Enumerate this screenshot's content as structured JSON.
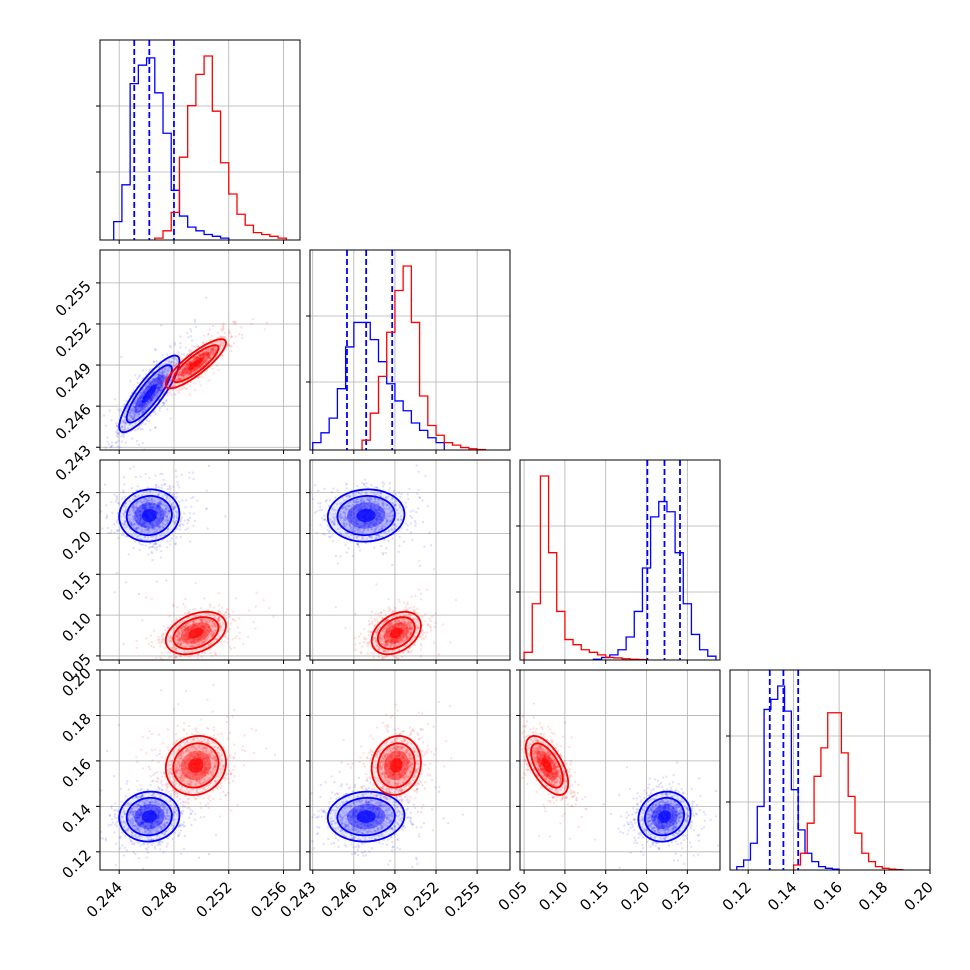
{
  "chart_data": {
    "type": "corner",
    "title": "",
    "n_parameters": 4,
    "series": [
      {
        "color": "#0000ff",
        "marginals": [
          {
            "bins": [
              0.2436,
              0.2442,
              0.2448,
              0.2454,
              0.246,
              0.2466,
              0.2472,
              0.2478,
              0.2484,
              0.249,
              0.2496,
              0.2502,
              0.2508,
              0.2514,
              0.252
            ],
            "counts": [
              0.1,
              0.3,
              0.85,
              0.95,
              0.99,
              0.8,
              0.58,
              0.27,
              0.13,
              0.07,
              0.05,
              0.03,
              0.02,
              0.01
            ]
          },
          {
            "bins": [
              0.243,
              0.2436,
              0.2442,
              0.2448,
              0.2454,
              0.246,
              0.2466,
              0.2472,
              0.2478,
              0.2484,
              0.249,
              0.2496,
              0.2502,
              0.2508,
              0.2514,
              0.252,
              0.2526
            ],
            "counts": [
              0.03,
              0.07,
              0.13,
              0.25,
              0.42,
              0.52,
              0.52,
              0.45,
              0.36,
              0.27,
              0.2,
              0.16,
              0.11,
              0.08,
              0.05,
              0.03
            ]
          },
          {
            "bins": [
              0.135,
              0.145,
              0.155,
              0.165,
              0.175,
              0.185,
              0.195,
              0.205,
              0.215,
              0.225,
              0.235,
              0.245,
              0.255,
              0.265,
              0.275,
              0.285
            ],
            "counts": [
              0.003,
              0.01,
              0.02,
              0.04,
              0.09,
              0.19,
              0.36,
              0.56,
              0.62,
              0.58,
              0.42,
              0.22,
              0.1,
              0.04,
              0.015
            ]
          },
          {
            "bins": [
              0.115,
              0.118,
              0.121,
              0.124,
              0.127,
              0.13,
              0.133,
              0.136,
              0.139,
              0.142,
              0.145,
              0.148,
              0.151,
              0.154,
              0.157,
              0.16
            ],
            "counts": [
              0.02,
              0.06,
              0.16,
              0.38,
              0.96,
              1.02,
              1.1,
              0.95,
              0.48,
              0.24,
              0.1,
              0.05,
              0.02,
              0.01,
              0.005
            ]
          }
        ],
        "quantiles": [
          [
            0.2451,
            0.2462,
            0.248
          ],
          [
            0.2455,
            0.2469,
            0.2488
          ],
          [
            0.201,
            0.222,
            0.241
          ],
          [
            0.1295,
            0.1355,
            0.142
          ]
        ],
        "means": [
          0.2462,
          0.2469,
          0.222,
          0.1355
        ],
        "sigmas": [
          0.0011,
          0.0014,
          0.016,
          0.0055
        ],
        "correlations": [
          [
            1,
            0.85,
            0.05,
            0.05
          ],
          [
            0.85,
            1,
            0.05,
            0.05
          ],
          [
            0.05,
            0.05,
            1,
            0.1
          ],
          [
            0.05,
            0.05,
            0.1,
            1
          ]
        ]
      },
      {
        "color": "#ff0000",
        "marginals": [
          {
            "bins": [
              0.2466,
              0.2472,
              0.2478,
              0.2484,
              0.249,
              0.2496,
              0.2502,
              0.2508,
              0.2514,
              0.252,
              0.2526,
              0.2532,
              0.2538,
              0.2544,
              0.255,
              0.2556,
              0.2562
            ],
            "counts": [
              0.01,
              0.05,
              0.15,
              0.45,
              0.73,
              0.9,
              1.0,
              0.7,
              0.42,
              0.25,
              0.14,
              0.08,
              0.04,
              0.03,
              0.02,
              0.01
            ]
          },
          {
            "bins": [
              0.2466,
              0.2472,
              0.2478,
              0.2484,
              0.249,
              0.2496,
              0.2502,
              0.2508,
              0.2514,
              0.252,
              0.2526,
              0.2532,
              0.2538,
              0.2544,
              0.255,
              0.2556
            ],
            "counts": [
              0.04,
              0.15,
              0.3,
              0.48,
              0.65,
              0.75,
              0.52,
              0.22,
              0.1,
              0.06,
              0.03,
              0.02,
              0.01,
              0.005,
              0.002
            ]
          },
          {
            "bins": [
              0.05,
              0.06,
              0.07,
              0.08,
              0.09,
              0.1,
              0.11,
              0.12,
              0.13,
              0.14,
              0.15,
              0.16,
              0.17,
              0.18,
              0.19,
              0.2
            ],
            "counts": [
              0.03,
              0.22,
              0.72,
              0.42,
              0.19,
              0.08,
              0.06,
              0.04,
              0.03,
              0.02,
              0.01,
              0.008,
              0.005,
              0.003,
              0.002
            ]
          },
          {
            "bins": [
              0.14,
              0.143,
              0.146,
              0.149,
              0.152,
              0.155,
              0.158,
              0.161,
              0.164,
              0.167,
              0.17,
              0.173,
              0.176,
              0.179,
              0.182,
              0.185,
              0.188
            ],
            "counts": [
              0.03,
              0.1,
              0.28,
              0.56,
              0.73,
              0.94,
              0.94,
              0.7,
              0.44,
              0.22,
              0.1,
              0.05,
              0.02,
              0.01,
              0.005,
              0.002
            ]
          }
        ],
        "means": [
          0.2496,
          0.2491,
          0.078,
          0.158
        ],
        "sigmas": [
          0.0011,
          0.0009,
          0.013,
          0.0065
        ],
        "correlations": [
          [
            1,
            0.85,
            0.35,
            0.1
          ],
          [
            0.85,
            1,
            0.35,
            0.1
          ],
          [
            0.35,
            0.35,
            1,
            -0.6
          ],
          [
            0.1,
            0.1,
            -0.6,
            1
          ]
        ]
      }
    ],
    "axes": [
      {
        "name": "",
        "lim": [
          0.2426,
          0.2572
        ],
        "ticks": [
          0.244,
          0.248,
          0.252,
          0.256
        ],
        "tick_labels": [
          "0.244",
          "0.248",
          "0.252",
          "0.256"
        ]
      },
      {
        "name": "",
        "lim": [
          0.2428,
          0.2574
        ],
        "ticks": [
          0.243,
          0.246,
          0.249,
          0.252,
          0.255
        ],
        "tick_labels": [
          "0.243",
          "0.246",
          "0.249",
          "0.252",
          "0.255"
        ]
      },
      {
        "name": "",
        "lim": [
          0.045,
          0.29
        ],
        "ticks": [
          0.05,
          0.1,
          0.15,
          0.2,
          0.25
        ],
        "tick_labels": [
          "0.05",
          "0.10",
          "0.15",
          "0.20",
          "0.25"
        ]
      },
      {
        "name": "",
        "lim": [
          0.112,
          0.2
        ],
        "ticks": [
          0.12,
          0.14,
          0.16,
          0.18,
          0.2
        ],
        "tick_labels": [
          "0.12",
          "0.14",
          "0.16",
          "0.18",
          "0.20"
        ]
      }
    ],
    "grid": true,
    "legend": "none"
  }
}
